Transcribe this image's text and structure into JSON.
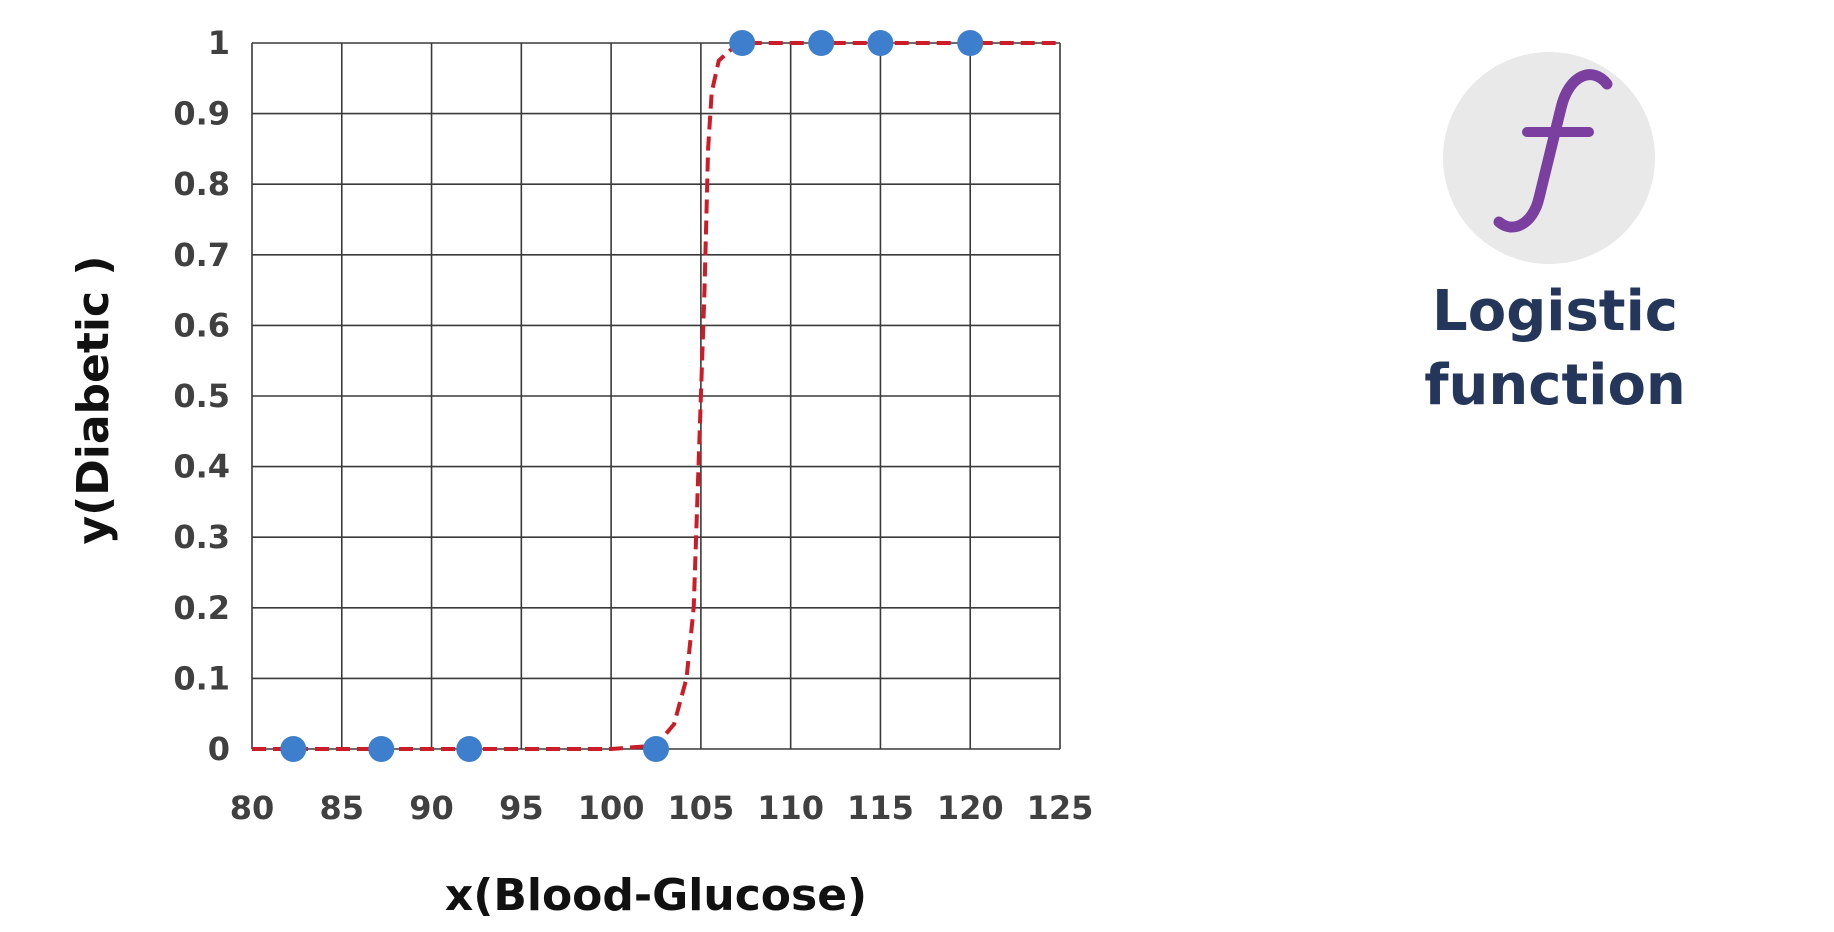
{
  "chart_data": {
    "type": "scatter",
    "xlabel": "x(Blood-Glucose)",
    "ylabel": "y(Diabetic )",
    "xlim": [
      80,
      125
    ],
    "ylim": [
      0,
      1
    ],
    "x_ticks": [
      "80",
      "85",
      "90",
      "95",
      "100",
      "105",
      "110",
      "115",
      "120",
      "125"
    ],
    "y_ticks": [
      "0",
      "0.1",
      "0.2",
      "0.3",
      "0.4",
      "0.5",
      "0.6",
      "0.7",
      "0.8",
      "0.9",
      "1"
    ],
    "grid": true,
    "series": [
      {
        "kind": "points",
        "color": "#3d7fcc",
        "x": [
          82.3,
          87.2,
          92.1,
          102.5,
          107.3,
          111.7,
          115,
          120
        ],
        "y": [
          0,
          0,
          0,
          0,
          1,
          1,
          1,
          1
        ]
      },
      {
        "kind": "logistic-curve",
        "color": "#cc1c27",
        "style": "dashed",
        "x": [
          80,
          100,
          102.5,
          103.5,
          104.2,
          104.6,
          104.8,
          105,
          105.2,
          105.4,
          105.6,
          106,
          107,
          108,
          125
        ],
        "y": [
          0,
          0,
          0.005,
          0.035,
          0.1,
          0.2,
          0.35,
          0.5,
          0.65,
          0.85,
          0.93,
          0.975,
          0.998,
          1,
          1
        ]
      }
    ]
  },
  "badge": {
    "icon": "function-icon",
    "glyph_color": "#7b3fa0",
    "circle_color": "#e9e9e9",
    "label_line1": "Logistic",
    "label_line2": "function"
  }
}
